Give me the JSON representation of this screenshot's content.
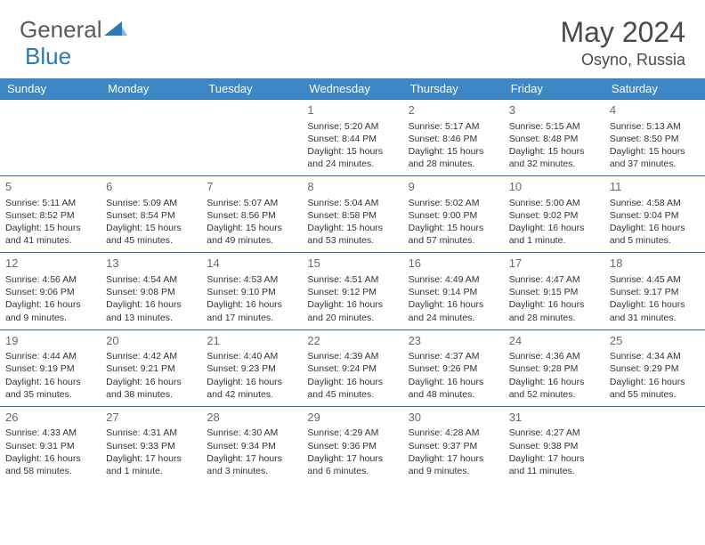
{
  "logo": {
    "part1": "General",
    "part2": "Blue"
  },
  "title": "May 2024",
  "location": "Osyno, Russia",
  "accent_color": "#3d87c7",
  "rule_color": "#2a6aa8",
  "days_of_week": [
    "Sunday",
    "Monday",
    "Tuesday",
    "Wednesday",
    "Thursday",
    "Friday",
    "Saturday"
  ],
  "weeks": [
    [
      null,
      null,
      null,
      {
        "n": "1",
        "sr": "5:20 AM",
        "ss": "8:44 PM",
        "dl": "15 hours and 24 minutes."
      },
      {
        "n": "2",
        "sr": "5:17 AM",
        "ss": "8:46 PM",
        "dl": "15 hours and 28 minutes."
      },
      {
        "n": "3",
        "sr": "5:15 AM",
        "ss": "8:48 PM",
        "dl": "15 hours and 32 minutes."
      },
      {
        "n": "4",
        "sr": "5:13 AM",
        "ss": "8:50 PM",
        "dl": "15 hours and 37 minutes."
      }
    ],
    [
      {
        "n": "5",
        "sr": "5:11 AM",
        "ss": "8:52 PM",
        "dl": "15 hours and 41 minutes."
      },
      {
        "n": "6",
        "sr": "5:09 AM",
        "ss": "8:54 PM",
        "dl": "15 hours and 45 minutes."
      },
      {
        "n": "7",
        "sr": "5:07 AM",
        "ss": "8:56 PM",
        "dl": "15 hours and 49 minutes."
      },
      {
        "n": "8",
        "sr": "5:04 AM",
        "ss": "8:58 PM",
        "dl": "15 hours and 53 minutes."
      },
      {
        "n": "9",
        "sr": "5:02 AM",
        "ss": "9:00 PM",
        "dl": "15 hours and 57 minutes."
      },
      {
        "n": "10",
        "sr": "5:00 AM",
        "ss": "9:02 PM",
        "dl": "16 hours and 1 minute."
      },
      {
        "n": "11",
        "sr": "4:58 AM",
        "ss": "9:04 PM",
        "dl": "16 hours and 5 minutes."
      }
    ],
    [
      {
        "n": "12",
        "sr": "4:56 AM",
        "ss": "9:06 PM",
        "dl": "16 hours and 9 minutes."
      },
      {
        "n": "13",
        "sr": "4:54 AM",
        "ss": "9:08 PM",
        "dl": "16 hours and 13 minutes."
      },
      {
        "n": "14",
        "sr": "4:53 AM",
        "ss": "9:10 PM",
        "dl": "16 hours and 17 minutes."
      },
      {
        "n": "15",
        "sr": "4:51 AM",
        "ss": "9:12 PM",
        "dl": "16 hours and 20 minutes."
      },
      {
        "n": "16",
        "sr": "4:49 AM",
        "ss": "9:14 PM",
        "dl": "16 hours and 24 minutes."
      },
      {
        "n": "17",
        "sr": "4:47 AM",
        "ss": "9:15 PM",
        "dl": "16 hours and 28 minutes."
      },
      {
        "n": "18",
        "sr": "4:45 AM",
        "ss": "9:17 PM",
        "dl": "16 hours and 31 minutes."
      }
    ],
    [
      {
        "n": "19",
        "sr": "4:44 AM",
        "ss": "9:19 PM",
        "dl": "16 hours and 35 minutes."
      },
      {
        "n": "20",
        "sr": "4:42 AM",
        "ss": "9:21 PM",
        "dl": "16 hours and 38 minutes."
      },
      {
        "n": "21",
        "sr": "4:40 AM",
        "ss": "9:23 PM",
        "dl": "16 hours and 42 minutes."
      },
      {
        "n": "22",
        "sr": "4:39 AM",
        "ss": "9:24 PM",
        "dl": "16 hours and 45 minutes."
      },
      {
        "n": "23",
        "sr": "4:37 AM",
        "ss": "9:26 PM",
        "dl": "16 hours and 48 minutes."
      },
      {
        "n": "24",
        "sr": "4:36 AM",
        "ss": "9:28 PM",
        "dl": "16 hours and 52 minutes."
      },
      {
        "n": "25",
        "sr": "4:34 AM",
        "ss": "9:29 PM",
        "dl": "16 hours and 55 minutes."
      }
    ],
    [
      {
        "n": "26",
        "sr": "4:33 AM",
        "ss": "9:31 PM",
        "dl": "16 hours and 58 minutes."
      },
      {
        "n": "27",
        "sr": "4:31 AM",
        "ss": "9:33 PM",
        "dl": "17 hours and 1 minute."
      },
      {
        "n": "28",
        "sr": "4:30 AM",
        "ss": "9:34 PM",
        "dl": "17 hours and 3 minutes."
      },
      {
        "n": "29",
        "sr": "4:29 AM",
        "ss": "9:36 PM",
        "dl": "17 hours and 6 minutes."
      },
      {
        "n": "30",
        "sr": "4:28 AM",
        "ss": "9:37 PM",
        "dl": "17 hours and 9 minutes."
      },
      {
        "n": "31",
        "sr": "4:27 AM",
        "ss": "9:38 PM",
        "dl": "17 hours and 11 minutes."
      },
      null
    ]
  ],
  "labels": {
    "sunrise": "Sunrise: ",
    "sunset": "Sunset: ",
    "daylight": "Daylight: "
  }
}
